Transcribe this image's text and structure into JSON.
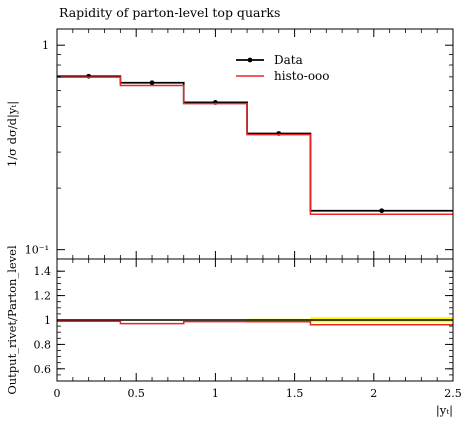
{
  "chart_data": [
    {
      "type": "line",
      "title": "Rapidity of parton-level top quarks",
      "ylabel": "1/σ dσ/d|yₜ|",
      "xlabel": "",
      "log_y": true,
      "xlim": [
        0,
        2.5
      ],
      "ylim": [
        0.09,
        1.2
      ],
      "bin_edges": [
        0,
        0.4,
        0.8,
        1.2,
        1.6,
        2.5
      ],
      "x_ticks": [],
      "y_tick_labels": [
        {
          "value": 1,
          "label": "1"
        },
        {
          "value": 0.1,
          "label": "10⁻¹"
        }
      ],
      "legend": {
        "position": "top-right"
      },
      "series": [
        {
          "name": "Data",
          "style": "step-points",
          "color": "#000000",
          "values": [
            0.705,
            0.655,
            0.525,
            0.37,
            0.155
          ]
        },
        {
          "name": "histo-ooo",
          "style": "step",
          "color": "#e8262a",
          "values": [
            0.698,
            0.635,
            0.518,
            0.365,
            0.149
          ]
        }
      ]
    },
    {
      "type": "line",
      "title": "",
      "ylabel": "Output_rivet/Parton_level",
      "xlabel": "|yₜ|",
      "xlim": [
        0,
        2.5
      ],
      "ylim": [
        0.5,
        1.5
      ],
      "bin_edges": [
        0,
        0.4,
        0.8,
        1.2,
        1.6,
        2.5
      ],
      "x_ticks": [
        {
          "value": 0,
          "label": "0"
        },
        {
          "value": 0.5,
          "label": "0.5"
        },
        {
          "value": 1,
          "label": "1"
        },
        {
          "value": 1.5,
          "label": "1.5"
        },
        {
          "value": 2,
          "label": "2"
        },
        {
          "value": 2.5,
          "label": "2.5"
        }
      ],
      "y_ticks": [
        {
          "value": 0.6,
          "label": "0.6"
        },
        {
          "value": 0.8,
          "label": "0.8"
        },
        {
          "value": 1,
          "label": "1"
        },
        {
          "value": 1.2,
          "label": "1.2"
        },
        {
          "value": 1.4,
          "label": "1.4"
        }
      ],
      "band": {
        "color": "#ffff00",
        "lower": [
          0.995,
          0.995,
          0.995,
          0.99,
          0.98
        ],
        "upper": [
          1.005,
          1.005,
          1.005,
          1.01,
          1.025
        ]
      },
      "series": [
        {
          "name": "Data",
          "style": "step",
          "color": "#000000",
          "values": [
            1.0,
            1.0,
            1.0,
            1.0,
            1.0
          ]
        },
        {
          "name": "histo-ooo",
          "style": "step",
          "color": "#e8262a",
          "values": [
            0.99,
            0.97,
            0.987,
            0.986,
            0.961
          ]
        }
      ]
    }
  ]
}
